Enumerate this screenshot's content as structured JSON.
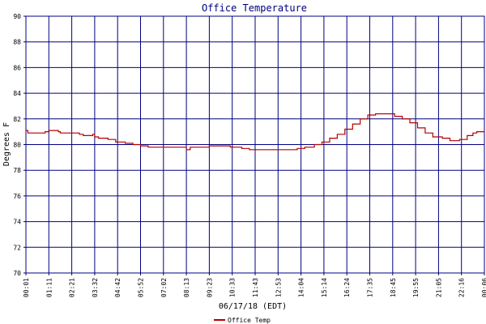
{
  "chart_data": {
    "type": "line",
    "title": "Office Temperature",
    "xlabel": "06/17/18 (EDT)",
    "ylabel": "Degrees F",
    "ylim": [
      70,
      90
    ],
    "yticks": [
      "70",
      "72",
      "74",
      "76",
      "78",
      "80",
      "82",
      "84",
      "86",
      "88",
      "90"
    ],
    "xticks": [
      "00:01",
      "01:11",
      "02:21",
      "03:32",
      "04:42",
      "05:52",
      "07:02",
      "08:13",
      "09:23",
      "10:33",
      "11:43",
      "12:53",
      "14:04",
      "15:14",
      "16:24",
      "17:35",
      "18:45",
      "19:55",
      "21:05",
      "22:16",
      "00:06"
    ],
    "grid": true,
    "legend_placement": "bottom-left",
    "colors": {
      "line": "#b20000",
      "grid": "#000080",
      "title": "#00007f"
    },
    "series": [
      {
        "name": "Office Temp",
        "x_hours": [
          0.0,
          0.1,
          0.5,
          1.0,
          1.2,
          1.7,
          1.8,
          2.8,
          3.0,
          3.3,
          3.5,
          3.6,
          3.8,
          4.3,
          4.7,
          5.2,
          5.6,
          6.0,
          6.4,
          7.0,
          8.0,
          8.4,
          8.6,
          8.9,
          9.6,
          10.5,
          10.7,
          10.9,
          11.3,
          11.7,
          12.6,
          13.6,
          14.2,
          14.6,
          15.1,
          15.5,
          15.9,
          16.3,
          16.7,
          17.1,
          17.5,
          17.9,
          18.3,
          18.9,
          19.3,
          19.7,
          20.1,
          20.5,
          20.9,
          21.3,
          21.8,
          22.2,
          22.7,
          23.1,
          23.4,
          23.6,
          24.0
        ],
        "values": [
          81.1,
          80.9,
          80.9,
          81.0,
          81.1,
          81.0,
          80.9,
          80.8,
          80.7,
          80.7,
          80.8,
          80.6,
          80.5,
          80.4,
          80.2,
          80.1,
          80.0,
          79.9,
          79.8,
          79.8,
          79.8,
          79.6,
          79.8,
          79.8,
          79.9,
          79.9,
          79.8,
          79.8,
          79.7,
          79.6,
          79.6,
          79.6,
          79.7,
          79.8,
          80.0,
          80.2,
          80.5,
          80.8,
          81.2,
          81.6,
          82.0,
          82.3,
          82.4,
          82.4,
          82.2,
          82.0,
          81.7,
          81.3,
          80.9,
          80.6,
          80.5,
          80.3,
          80.4,
          80.7,
          80.9,
          81.0,
          81.1
        ]
      }
    ]
  }
}
